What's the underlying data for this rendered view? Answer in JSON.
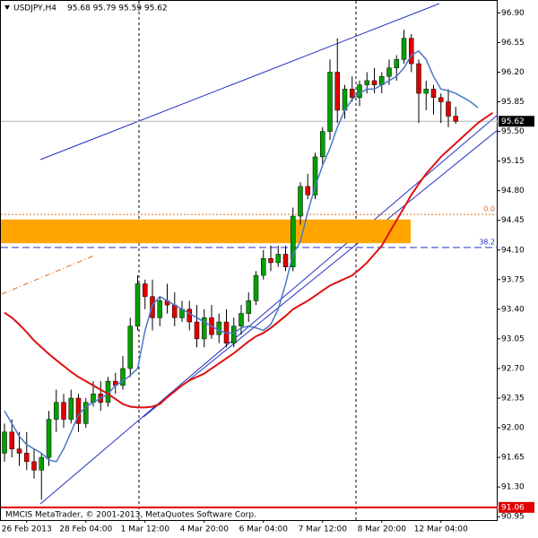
{
  "chart_data": {
    "type": "candlestick",
    "title": "USDJPY,H4",
    "subtitle": "95.68 95.79 95.59 95.62",
    "footer": "MMCIS MetaTrader, © 2001-2013, MetaQuotes Software Corp.",
    "categories": [
      null,
      null,
      null,
      "26 Feb 2013",
      null,
      null,
      null,
      null,
      null,
      null,
      null,
      "28 Feb 04:00",
      null,
      null,
      null,
      null,
      null,
      null,
      null,
      "1 Mar 12:00",
      null,
      null,
      null,
      null,
      null,
      null,
      null,
      "4 Mar 20:00",
      null,
      null,
      null,
      null,
      null,
      null,
      null,
      "6 Mar 04:00",
      null,
      null,
      null,
      null,
      null,
      null,
      null,
      "7 Mar 12:00",
      null,
      null,
      null,
      null,
      null,
      null,
      null,
      "8 Mar 20:00",
      null,
      null,
      null,
      null,
      null,
      null,
      null,
      "12 Mar 04:00",
      null,
      null,
      null,
      null,
      null,
      null,
      null
    ],
    "open": [
      91.7,
      91.95,
      91.75,
      91.7,
      91.6,
      91.5,
      91.65,
      92.1,
      92.3,
      92.1,
      92.35,
      92.05,
      92.3,
      92.4,
      92.3,
      92.55,
      92.5,
      92.7,
      93.2,
      93.7,
      93.55,
      93.3,
      93.5,
      93.45,
      93.3,
      93.4,
      93.25,
      93.05,
      93.3,
      93.1,
      93.25,
      93.0,
      93.2,
      93.35,
      93.5,
      93.8,
      94.0,
      93.95,
      94.05,
      93.9,
      94.5,
      94.85,
      94.75,
      95.2,
      95.5,
      96.2,
      95.75,
      96.0,
      95.9,
      96.05,
      96.1,
      96.05,
      96.15,
      96.25,
      96.35,
      96.6,
      96.3,
      95.95,
      96.0,
      95.9,
      95.85,
      95.68,
      null,
      null,
      null,
      null,
      null
    ],
    "high": [
      92.05,
      92.1,
      91.95,
      91.95,
      91.75,
      91.7,
      92.2,
      92.45,
      92.4,
      92.45,
      92.4,
      92.35,
      92.55,
      92.55,
      92.6,
      92.65,
      92.85,
      93.3,
      93.8,
      93.75,
      93.75,
      93.55,
      93.7,
      93.6,
      93.5,
      93.5,
      93.45,
      93.4,
      93.45,
      93.35,
      93.4,
      93.3,
      93.45,
      93.6,
      93.85,
      94.1,
      94.15,
      94.15,
      94.15,
      94.6,
      94.9,
      95.0,
      95.25,
      95.55,
      96.35,
      96.6,
      96.05,
      96.15,
      96.1,
      96.2,
      96.25,
      96.2,
      96.35,
      96.4,
      96.7,
      96.65,
      96.35,
      96.1,
      96.05,
      95.95,
      96.0,
      95.79,
      null,
      null,
      null,
      null,
      null
    ],
    "low": [
      91.6,
      91.65,
      91.55,
      91.5,
      91.4,
      91.15,
      91.55,
      91.95,
      92.0,
      92.05,
      91.95,
      92.0,
      92.25,
      92.2,
      92.25,
      92.4,
      92.45,
      92.6,
      93.15,
      93.4,
      93.15,
      93.2,
      93.35,
      93.2,
      93.25,
      93.15,
      92.95,
      92.95,
      93.05,
      93.0,
      92.95,
      92.95,
      93.1,
      93.25,
      93.45,
      93.75,
      93.85,
      93.9,
      93.85,
      93.85,
      94.4,
      94.7,
      94.7,
      95.1,
      95.4,
      95.6,
      95.65,
      95.85,
      95.8,
      95.95,
      95.95,
      95.95,
      96.05,
      96.1,
      96.3,
      96.2,
      95.6,
      95.75,
      95.7,
      95.6,
      95.55,
      95.59,
      null,
      null,
      null,
      null,
      null
    ],
    "close": [
      91.95,
      91.75,
      91.7,
      91.6,
      91.5,
      91.65,
      92.1,
      92.3,
      92.1,
      92.35,
      92.05,
      92.3,
      92.4,
      92.3,
      92.55,
      92.5,
      92.7,
      93.2,
      93.7,
      93.55,
      93.3,
      93.5,
      93.45,
      93.3,
      93.4,
      93.25,
      93.05,
      93.3,
      93.1,
      93.25,
      93.0,
      93.2,
      93.35,
      93.5,
      93.8,
      94.0,
      93.95,
      94.05,
      93.9,
      94.5,
      94.85,
      94.75,
      95.2,
      95.5,
      96.2,
      95.75,
      96.0,
      95.9,
      96.05,
      96.1,
      96.05,
      96.15,
      96.25,
      96.35,
      96.6,
      96.3,
      95.95,
      96.0,
      95.9,
      95.85,
      95.68,
      95.62,
      null,
      null,
      null,
      null,
      null
    ],
    "up_color": "#00a000",
    "down_color": "#e00000",
    "lines": [
      {
        "color": "#4a78c8",
        "values": [
          92.2,
          92.05,
          91.9,
          91.8,
          91.75,
          91.7,
          91.62,
          91.6,
          91.75,
          91.95,
          92.15,
          92.25,
          92.3,
          92.35,
          92.4,
          92.5,
          92.55,
          92.62,
          92.7,
          93.15,
          93.45,
          93.55,
          93.5,
          93.45,
          93.4,
          93.35,
          93.3,
          93.25,
          93.2,
          93.15,
          93.12,
          93.12,
          93.18,
          93.2,
          93.18,
          93.15,
          93.22,
          93.4,
          93.7,
          94.05,
          94.2,
          94.55,
          94.85,
          95.1,
          95.3,
          95.55,
          95.75,
          95.88,
          95.95,
          96.0,
          96.0,
          96.05,
          96.1,
          96.15,
          96.25,
          96.4,
          96.45,
          96.35,
          96.15,
          96.0,
          95.98,
          95.95,
          95.9,
          95.85,
          95.78,
          null,
          null
        ]
      },
      {
        "color": "#e01010",
        "values": [
          93.36,
          93.3,
          93.22,
          93.13,
          93.03,
          92.95,
          92.87,
          92.8,
          92.73,
          92.66,
          92.6,
          92.55,
          92.5,
          92.45,
          92.4,
          92.34,
          92.28,
          92.25,
          92.24,
          92.24,
          92.25,
          92.28,
          92.36,
          92.43,
          92.5,
          92.56,
          92.6,
          92.64,
          92.7,
          92.76,
          92.82,
          92.88,
          92.95,
          93.02,
          93.08,
          93.12,
          93.18,
          93.25,
          93.32,
          93.4,
          93.45,
          93.5,
          93.56,
          93.62,
          93.68,
          93.72,
          93.76,
          93.8,
          93.87,
          93.95,
          94.05,
          94.15,
          94.3,
          94.45,
          94.6,
          94.75,
          94.88,
          95.0,
          95.1,
          95.2,
          95.28,
          95.36,
          95.44,
          95.52,
          95.6,
          95.66,
          95.72
        ]
      }
    ],
    "zone": {
      "color": "#ffa500",
      "ylim": [
        94.18,
        94.46
      ]
    },
    "fib_levels": [
      {
        "label": "0.0",
        "price": 94.52,
        "color": "#e07020"
      },
      {
        "label": "38.2",
        "price": 94.13,
        "color": "#2030c0"
      }
    ],
    "current_price": 95.62,
    "alert_price": 91.06,
    "ylim": [
      90.91,
      97.01
    ],
    "yticks": [
      {
        "value": 96.9,
        "label": "96.90"
      },
      {
        "value": 96.55,
        "label": "96.55"
      },
      {
        "value": 96.2,
        "label": "96.20"
      },
      {
        "value": 95.85,
        "label": "95.85"
      },
      {
        "value": 95.5,
        "label": "95.50"
      },
      {
        "value": 95.15,
        "label": "95.15"
      },
      {
        "value": 94.8,
        "label": "94.80"
      },
      {
        "value": 94.45,
        "label": "94.45"
      },
      {
        "value": 94.1,
        "label": "94.10"
      },
      {
        "value": 93.75,
        "label": "93.75"
      },
      {
        "value": 93.4,
        "label": "93.40"
      },
      {
        "value": 93.05,
        "label": "93.05"
      },
      {
        "value": 92.7,
        "label": "92.70"
      },
      {
        "value": 92.35,
        "label": "92.35"
      },
      {
        "value": 92.0,
        "label": "92.00"
      },
      {
        "value": 91.65,
        "label": "91.65"
      },
      {
        "value": 91.3,
        "label": "91.30"
      },
      {
        "value": 90.95,
        "label": "90.95"
      }
    ]
  }
}
